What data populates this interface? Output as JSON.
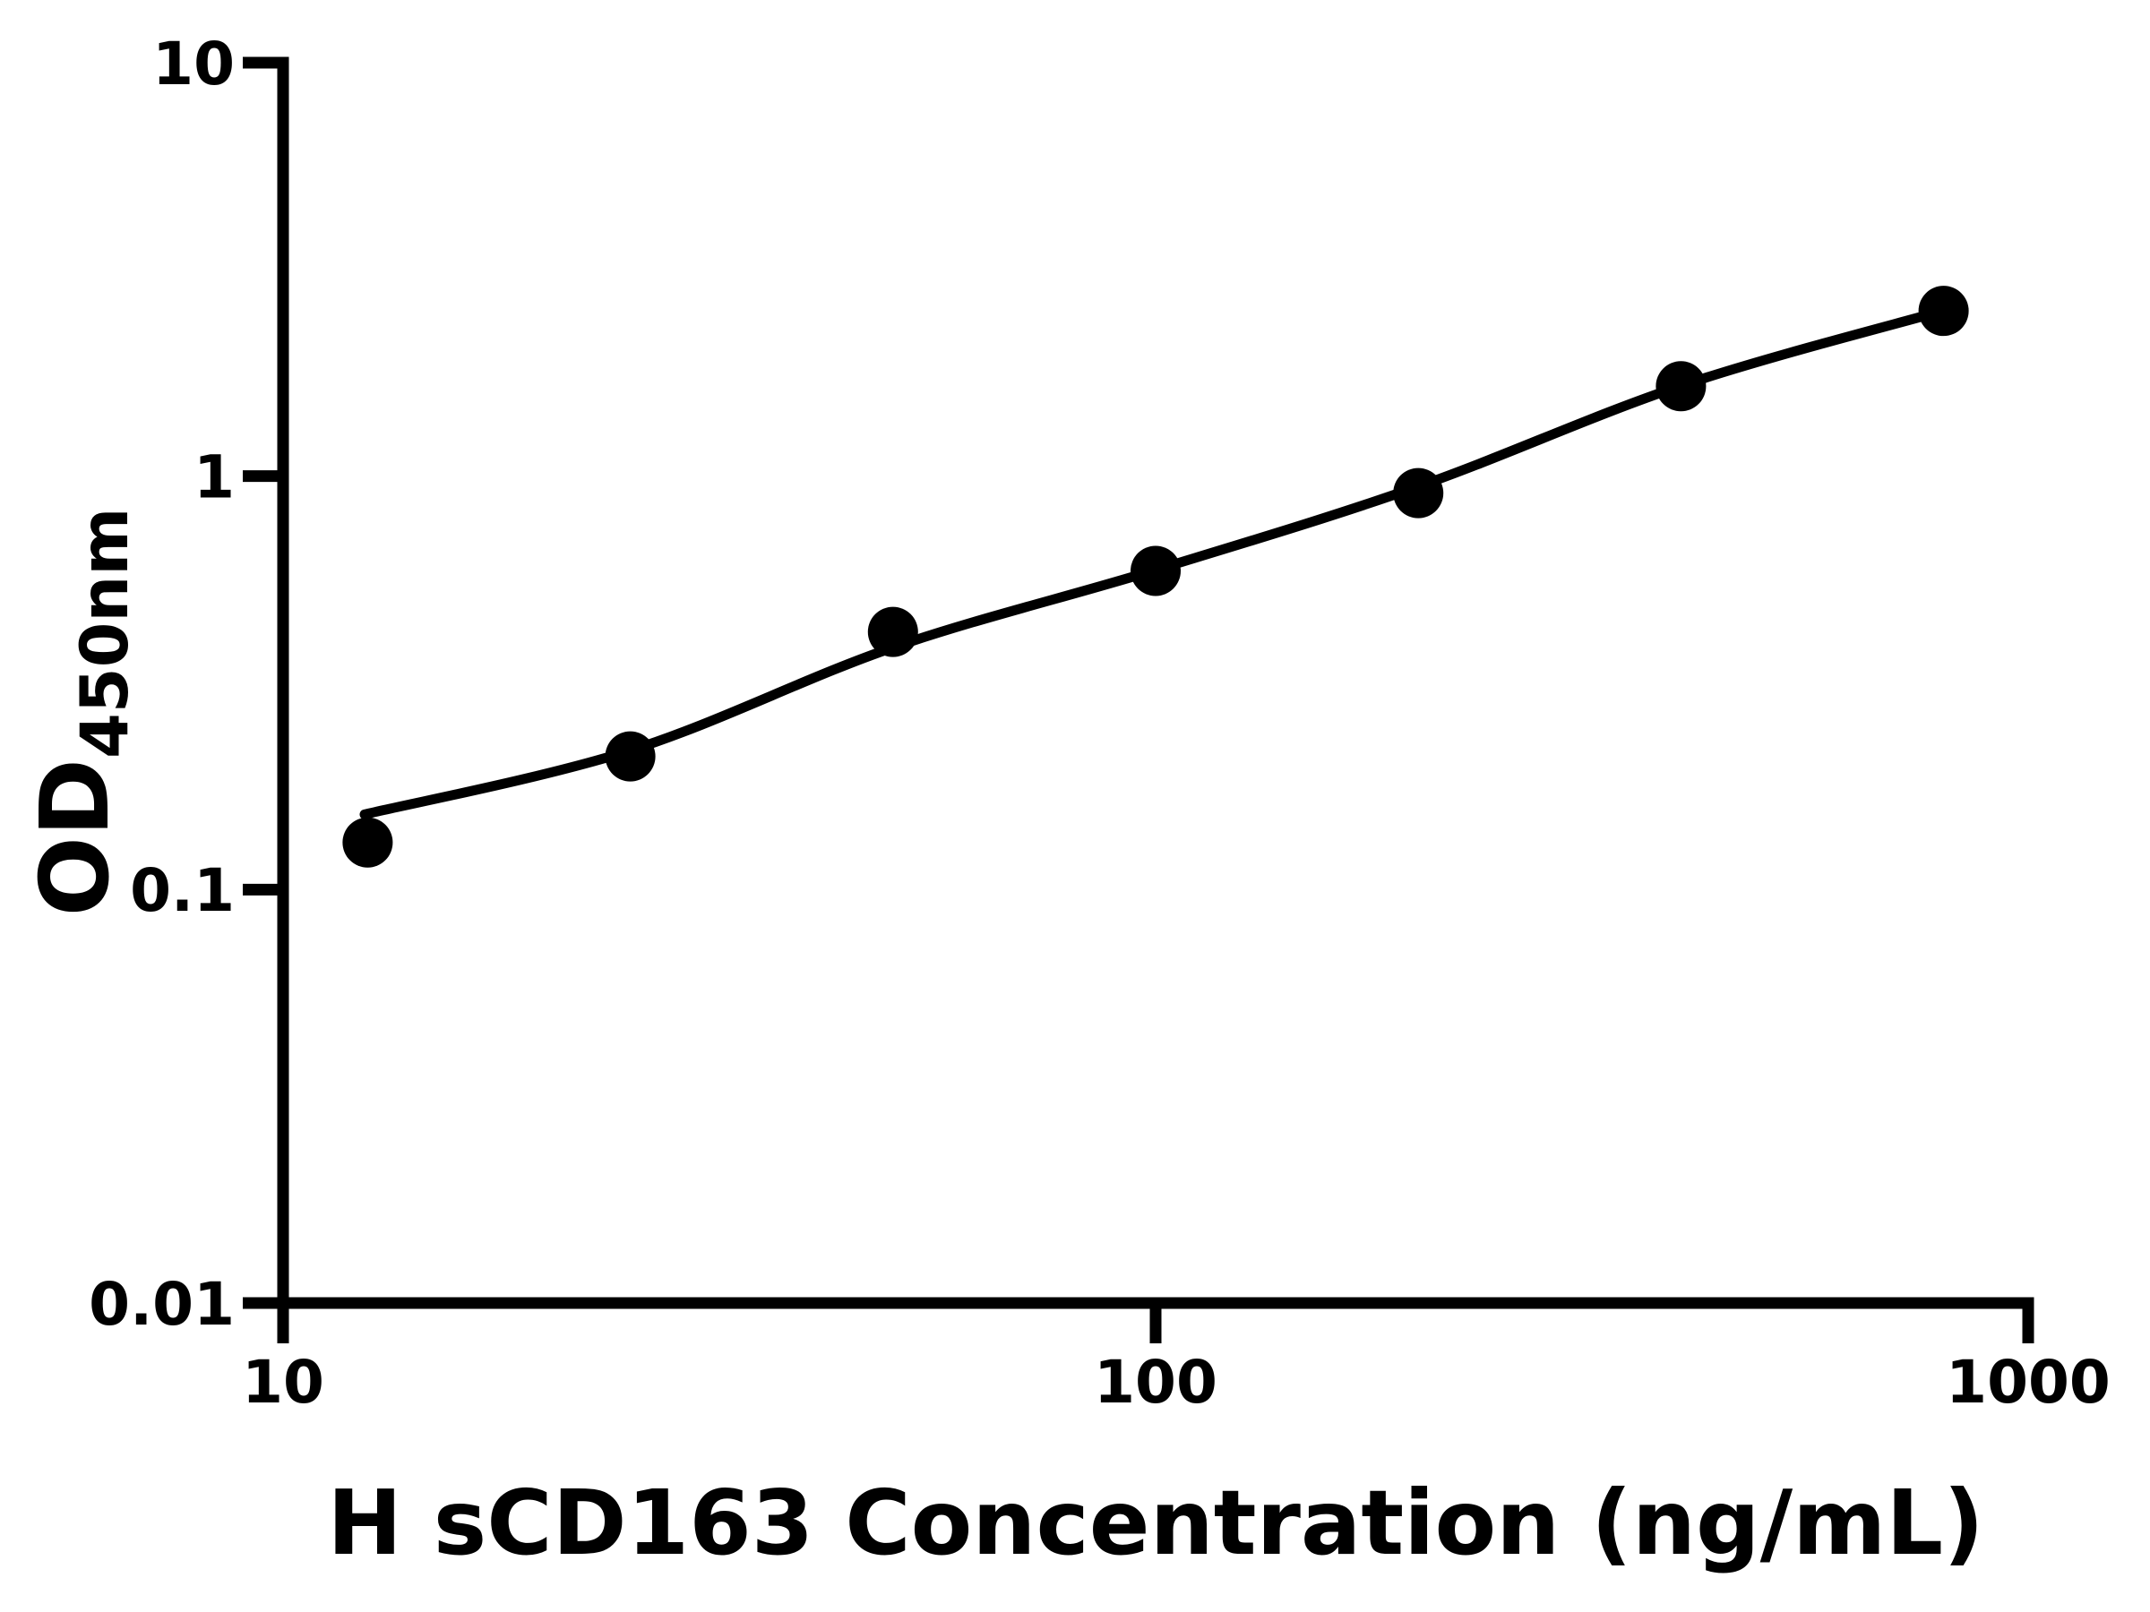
{
  "chart_data": {
    "type": "scatter",
    "title": "",
    "xlabel": "H sCD163 Concentration (ng/mL)",
    "ylabel_main": "OD",
    "ylabel_sub": "450nm",
    "x_scale": "log",
    "y_scale": "log",
    "xlim": [
      10,
      1000
    ],
    "ylim": [
      0.01,
      10
    ],
    "x_ticks": [
      "10",
      "100",
      "1000"
    ],
    "y_ticks": [
      "10",
      "1",
      "0.1",
      "0.01"
    ],
    "grid": "off",
    "legend": "none",
    "ink_color": "#000000",
    "background_color": "#ffffff",
    "series": [
      {
        "name": "H sCD163 standard curve points",
        "marker": "circle",
        "color": "#000000",
        "x": [
          12.5,
          25,
          50,
          100,
          200,
          400,
          800
        ],
        "y": [
          0.13,
          0.21,
          0.42,
          0.59,
          0.91,
          1.65,
          2.51
        ]
      }
    ],
    "fit_curve": {
      "name": "4PL fit line",
      "color": "#000000",
      "x": [
        12.4,
        25,
        50,
        100,
        200,
        400,
        800
      ],
      "y": [
        0.152,
        0.217,
        0.385,
        0.593,
        0.944,
        1.654,
        2.514
      ]
    }
  }
}
